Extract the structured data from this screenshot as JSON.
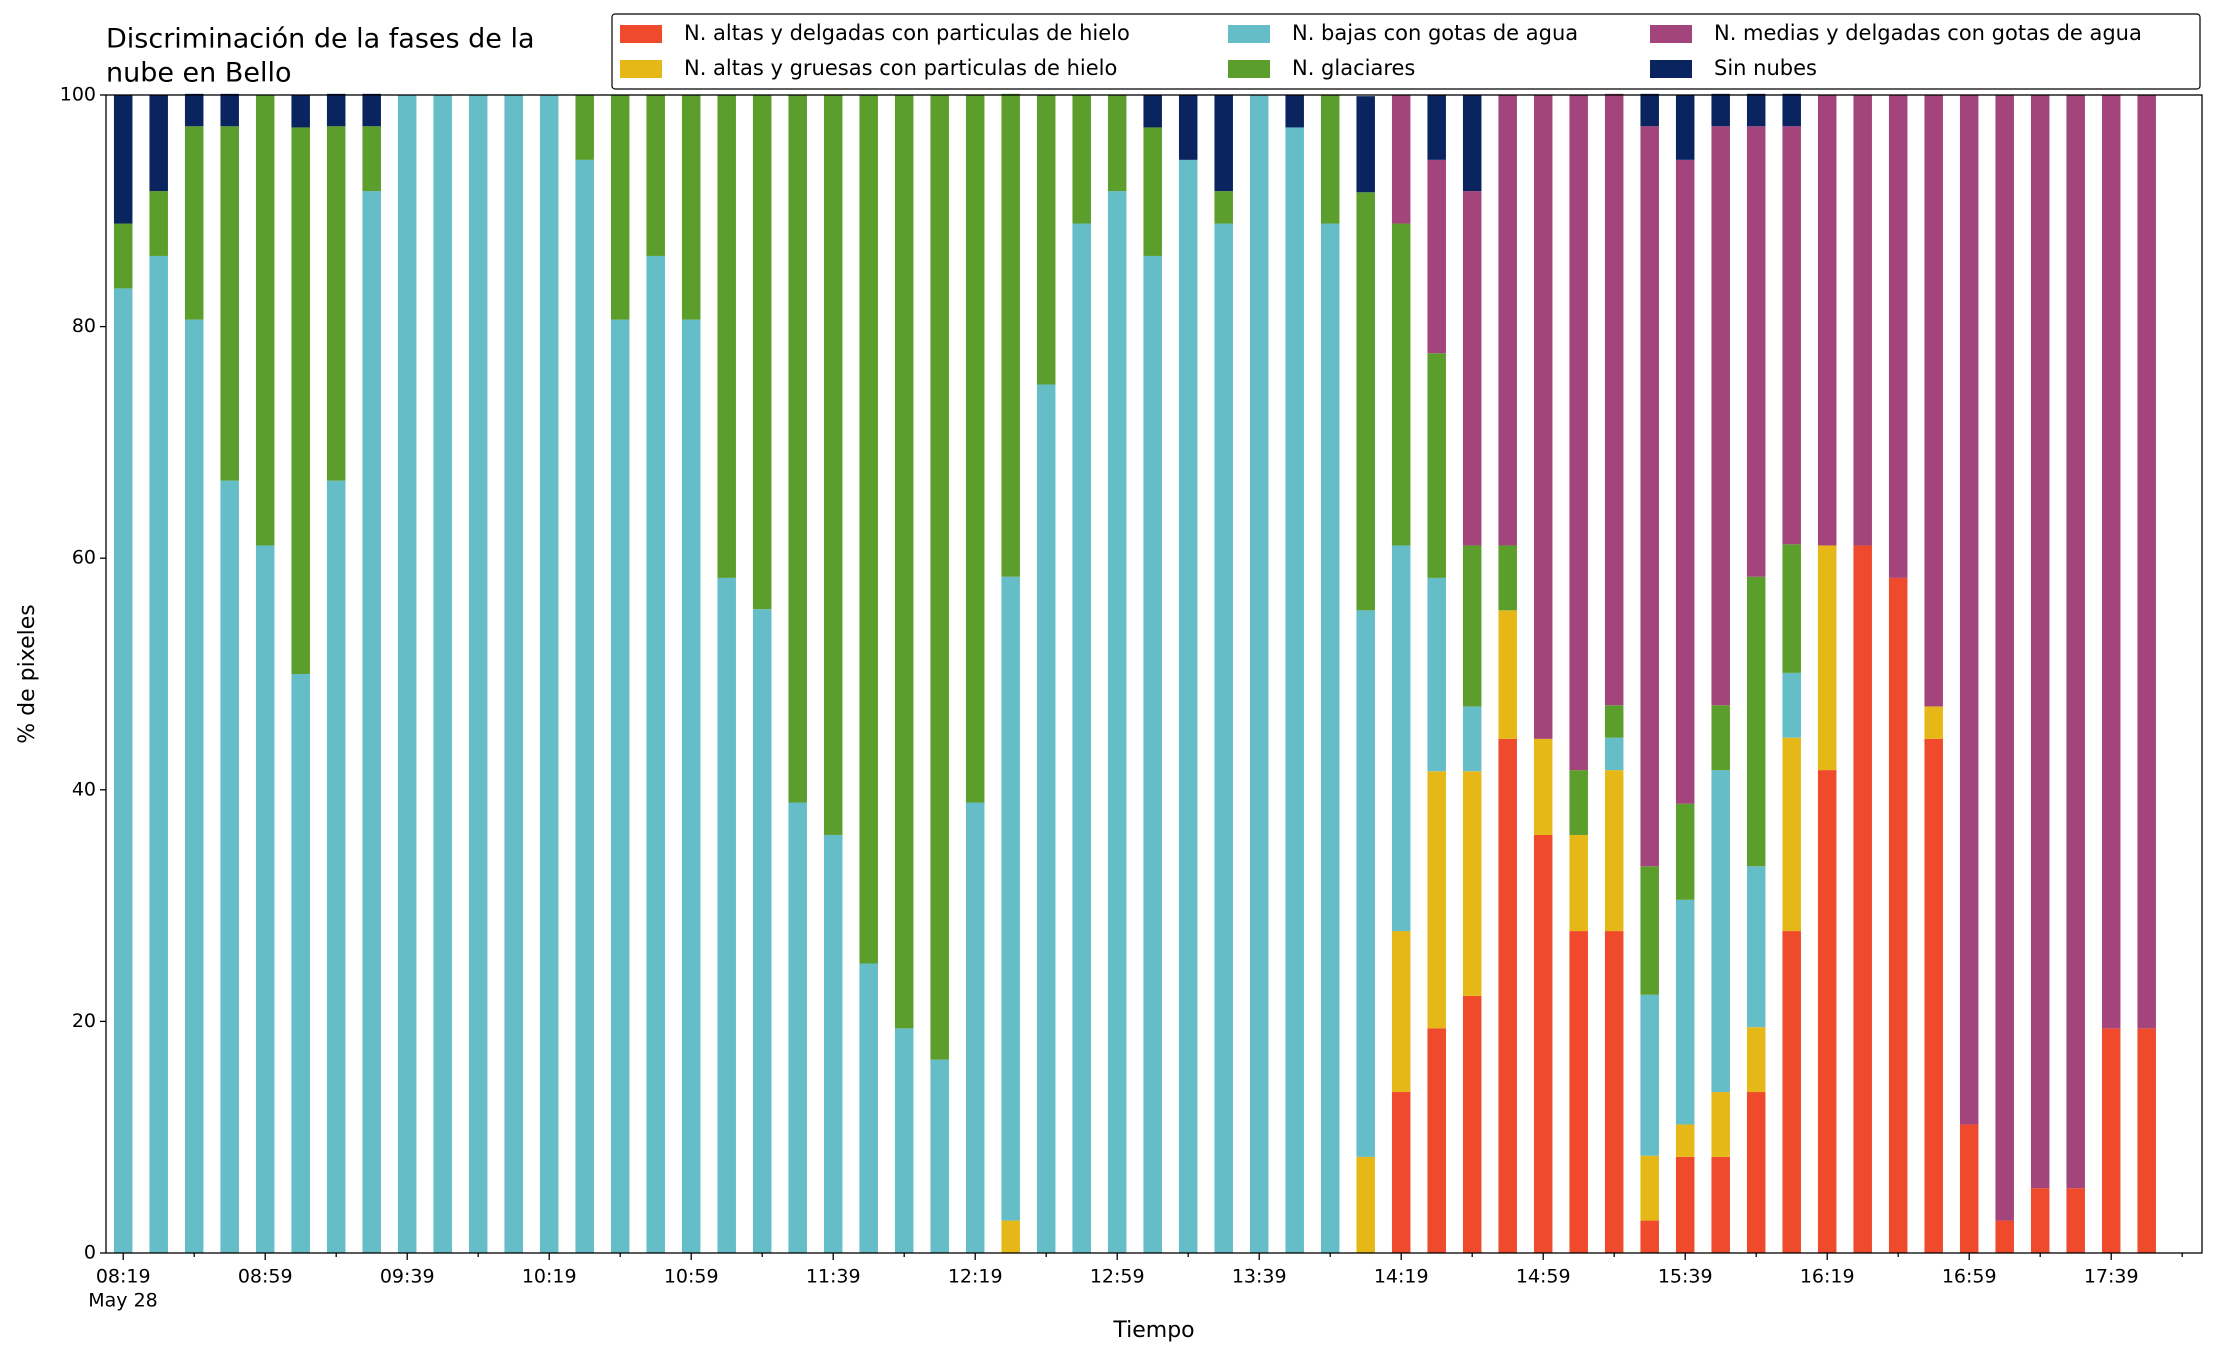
{
  "chart_data": {
    "type": "stacked_bar",
    "title": [
      "Discriminación de la fases de la",
      "nube en Bello"
    ],
    "xlabel": "Tiempo",
    "ylabel": "% de pixeles",
    "x_date": "May 28",
    "categories": [
      "08:19",
      null,
      null,
      null,
      "08:59",
      null,
      null,
      null,
      "09:39",
      null,
      null,
      null,
      "10:19",
      null,
      null,
      null,
      "10:59",
      null,
      null,
      null,
      "11:39",
      null,
      null,
      null,
      "12:19",
      null,
      null,
      null,
      "12:59",
      null,
      null,
      null,
      "13:39",
      null,
      null,
      null,
      "14:19",
      null,
      null,
      null,
      "14:59",
      null,
      null,
      null,
      "15:39",
      null,
      null,
      null,
      "16:19",
      null,
      null,
      null,
      "16:59",
      null,
      null,
      null,
      "17:39",
      null
    ],
    "ylim": [
      0,
      100
    ],
    "yticks": [
      0,
      20,
      40,
      60,
      80,
      100
    ],
    "grid": false,
    "legend": "top right",
    "series": [
      {
        "name": "N. altas y delgadas con particulas de hielo",
        "color": "#ee4a2b",
        "values": [
          0,
          0,
          0,
          0,
          0,
          0,
          0,
          0,
          0,
          0,
          0,
          0,
          0,
          0,
          0,
          0,
          0,
          0,
          0,
          0,
          0,
          0,
          0,
          0,
          0,
          0,
          0,
          0,
          0,
          0,
          0,
          0,
          0,
          0,
          0,
          0,
          13.9,
          19.4,
          22.2,
          44.4,
          36.1,
          27.8,
          27.8,
          2.8,
          8.3,
          8.3,
          13.9,
          27.8,
          41.7,
          61.1,
          58.3,
          44.4,
          11.1,
          2.8,
          5.6,
          5.6,
          19.4,
          19.4
        ]
      },
      {
        "name": "N. altas y gruesas con particulas de hielo",
        "color": "#e6b817",
        "values": [
          0,
          0,
          0,
          0,
          0,
          0,
          0,
          0,
          0,
          0,
          0,
          0,
          0,
          0,
          0,
          0,
          0,
          0,
          0,
          0,
          0,
          0,
          0,
          0,
          0,
          2.8,
          0,
          0,
          0,
          0,
          0,
          0,
          0,
          0,
          0,
          8.3,
          13.9,
          22.2,
          19.4,
          11.1,
          8.3,
          8.3,
          13.9,
          5.6,
          2.8,
          5.6,
          5.6,
          16.7,
          19.4,
          0,
          0,
          2.8,
          0,
          0,
          0,
          0,
          0,
          0
        ]
      },
      {
        "name": "N. bajas con gotas de agua",
        "color": "#65bdc8",
        "values": [
          83.3,
          86.1,
          80.6,
          66.7,
          61.1,
          50,
          66.7,
          91.7,
          100,
          100,
          100,
          100,
          100,
          94.4,
          80.6,
          86.1,
          80.6,
          58.3,
          55.6,
          38.9,
          36.1,
          25,
          19.4,
          16.7,
          38.9,
          55.6,
          75,
          88.9,
          91.7,
          86.1,
          94.4,
          88.9,
          100,
          97.2,
          88.9,
          47.2,
          33.3,
          16.7,
          5.6,
          0,
          0,
          0,
          2.8,
          13.9,
          19.4,
          27.8,
          13.9,
          5.6,
          0,
          0,
          0,
          0,
          0,
          0,
          0,
          0,
          0,
          0
        ]
      },
      {
        "name": "N. glaciares",
        "color": "#5c9e2c",
        "values": [
          5.6,
          5.6,
          16.7,
          30.6,
          38.9,
          47.2,
          30.6,
          5.6,
          0,
          0,
          0,
          0,
          0,
          5.6,
          19.4,
          13.9,
          19.4,
          41.7,
          44.4,
          61.1,
          63.9,
          75,
          80.6,
          83.3,
          61.1,
          41.7,
          25,
          11.1,
          8.3,
          11.1,
          0,
          2.8,
          0,
          0,
          11.1,
          36.1,
          27.8,
          19.4,
          13.9,
          5.6,
          0,
          5.6,
          2.8,
          11.1,
          8.3,
          5.6,
          25,
          11.1,
          0,
          0,
          0,
          0,
          0,
          0,
          0,
          0,
          0,
          0
        ]
      },
      {
        "name": "N. medias y delgadas con gotas de agua",
        "color": "#a3457c",
        "values": [
          0,
          0,
          0,
          0,
          0,
          0,
          0,
          0,
          0,
          0,
          0,
          0,
          0,
          0,
          0,
          0,
          0,
          0,
          0,
          0,
          0,
          0,
          0,
          0,
          0,
          0,
          0,
          0,
          0,
          0,
          0,
          0,
          0,
          0,
          0,
          0,
          11.1,
          16.7,
          30.6,
          38.9,
          55.6,
          58.3,
          52.8,
          63.9,
          55.6,
          50,
          38.9,
          36.1,
          38.9,
          38.9,
          41.7,
          52.8,
          88.9,
          97.2,
          94.4,
          94.4,
          80.6,
          80.6
        ]
      },
      {
        "name": "Sin nubes",
        "color": "#0a2460",
        "values": [
          11.1,
          8.3,
          2.8,
          2.8,
          0,
          2.8,
          2.8,
          2.8,
          0,
          0,
          0,
          0,
          0,
          0,
          0,
          0,
          0,
          0,
          0,
          0,
          0,
          0,
          0,
          0,
          0,
          0,
          0,
          0,
          0,
          2.8,
          5.6,
          8.3,
          0,
          2.8,
          0,
          8.3,
          0,
          5.6,
          8.3,
          0,
          0,
          0,
          0,
          2.8,
          5.6,
          2.8,
          2.8,
          2.8,
          0,
          0,
          0,
          0,
          0,
          0,
          0,
          0,
          0,
          0
        ]
      }
    ]
  }
}
